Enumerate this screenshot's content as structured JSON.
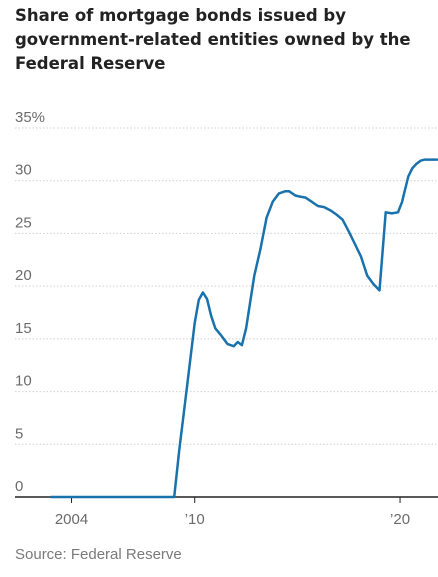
{
  "chart_data": {
    "type": "line",
    "title": "Share of mortgage bonds issued by government-related entities owned by the Federal Reserve",
    "source": "Source: Federal Reserve",
    "ylim": [
      0,
      35
    ],
    "xlim": [
      2003.0,
      2021.8
    ],
    "y_ticks": [
      {
        "value": 0,
        "label": "0"
      },
      {
        "value": 5,
        "label": "5"
      },
      {
        "value": 10,
        "label": "10"
      },
      {
        "value": 15,
        "label": "15"
      },
      {
        "value": 20,
        "label": "20"
      },
      {
        "value": 25,
        "label": "25"
      },
      {
        "value": 30,
        "label": "30"
      },
      {
        "value": 35,
        "label": "35%"
      }
    ],
    "x_ticks": [
      {
        "value": 2004,
        "label": "2004"
      },
      {
        "value": 2010,
        "label": "’10"
      },
      {
        "value": 2020,
        "label": "’20"
      }
    ],
    "grid": true,
    "line_color": "#1a72ad",
    "series": [
      {
        "x": [
          2003.0,
          2004.0,
          2005.0,
          2006.0,
          2007.0,
          2008.0,
          2008.8,
          2009.0,
          2009.25,
          2009.5,
          2009.75,
          2010.0,
          2010.2,
          2010.4,
          2010.6,
          2010.8,
          2011.0,
          2011.3,
          2011.6,
          2011.9,
          2012.1,
          2012.3,
          2012.5,
          2012.7,
          2012.9,
          2013.2,
          2013.5,
          2013.8,
          2014.1,
          2014.4,
          2014.6,
          2014.9,
          2015.1,
          2015.4,
          2015.7,
          2016.0,
          2016.3,
          2016.6,
          2016.9,
          2017.2,
          2017.5,
          2017.8,
          2018.1,
          2018.4,
          2018.7,
          2019.0,
          2019.3,
          2019.6,
          2019.9,
          2020.1,
          2020.2,
          2020.4,
          2020.6,
          2020.8,
          2021.0,
          2021.2,
          2021.4,
          2021.6,
          2021.8
        ],
        "y": [
          0,
          0,
          0,
          0,
          0,
          0,
          0,
          0,
          4.5,
          8.5,
          12.5,
          16.5,
          18.7,
          19.4,
          18.8,
          17.2,
          16.0,
          15.3,
          14.5,
          14.3,
          14.7,
          14.4,
          16.0,
          18.5,
          21.0,
          23.5,
          26.5,
          28.0,
          28.8,
          29.0,
          29.0,
          28.6,
          28.5,
          28.4,
          28.0,
          27.6,
          27.5,
          27.2,
          26.8,
          26.3,
          25.2,
          24.0,
          22.8,
          21.0,
          20.2,
          19.6,
          27.0,
          26.9,
          27.0,
          28.0,
          28.8,
          30.4,
          31.2,
          31.6,
          31.9,
          32.0,
          32.0,
          32.0,
          32.0
        ]
      }
    ]
  }
}
